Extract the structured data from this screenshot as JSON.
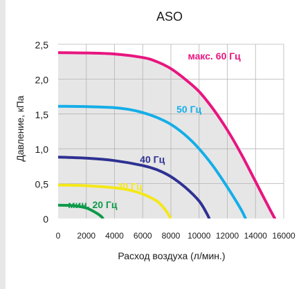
{
  "chart_data": {
    "type": "line",
    "title": "ASO",
    "xlabel": "Расход воздуха (л/мин.)",
    "ylabel": "Давление, кПа",
    "xlim": [
      0,
      16000
    ],
    "ylim": [
      0,
      2.5
    ],
    "x_ticks": [
      0,
      2000,
      4000,
      6000,
      8000,
      10000,
      12000,
      14000,
      16000
    ],
    "y_ticks": [
      0,
      0.5,
      1.0,
      1.5,
      2.0,
      2.5
    ],
    "y_tick_labels": [
      "0",
      "0,5",
      "1,0",
      "1,5",
      "2,0",
      "2,5"
    ],
    "grid": true,
    "series": [
      {
        "name": "макс. 60 Гц",
        "color": "#e8157f",
        "points": [
          [
            0,
            2.38
          ],
          [
            2000,
            2.375
          ],
          [
            4000,
            2.36
          ],
          [
            6000,
            2.31
          ],
          [
            7000,
            2.25
          ],
          [
            8000,
            2.15
          ],
          [
            9000,
            2.0
          ],
          [
            10000,
            1.82
          ],
          [
            11000,
            1.57
          ],
          [
            12000,
            1.27
          ],
          [
            13000,
            0.92
          ],
          [
            14000,
            0.53
          ],
          [
            15000,
            0.14
          ],
          [
            15500,
            -0.05
          ]
        ]
      },
      {
        "name": "50 Гц",
        "color": "#14aee8",
        "points": [
          [
            0,
            1.61
          ],
          [
            2000,
            1.605
          ],
          [
            4000,
            1.59
          ],
          [
            5000,
            1.565
          ],
          [
            6000,
            1.52
          ],
          [
            7000,
            1.45
          ],
          [
            8000,
            1.35
          ],
          [
            9000,
            1.2
          ],
          [
            10000,
            1.0
          ],
          [
            11000,
            0.75
          ],
          [
            12000,
            0.45
          ],
          [
            13000,
            0.12
          ],
          [
            13400,
            -0.05
          ]
        ]
      },
      {
        "name": "40 Гц",
        "color": "#2e3192",
        "points": [
          [
            0,
            0.88
          ],
          [
            2000,
            0.865
          ],
          [
            4000,
            0.83
          ],
          [
            6000,
            0.76
          ],
          [
            7000,
            0.7
          ],
          [
            8000,
            0.6
          ],
          [
            9000,
            0.45
          ],
          [
            10000,
            0.25
          ],
          [
            10600,
            0.05
          ],
          [
            10800,
            -0.05
          ]
        ]
      },
      {
        "name": "30 Гц",
        "color": "#f4e81a",
        "points": [
          [
            0,
            0.48
          ],
          [
            2000,
            0.47
          ],
          [
            4000,
            0.44
          ],
          [
            5000,
            0.41
          ],
          [
            6000,
            0.35
          ],
          [
            7000,
            0.25
          ],
          [
            7500,
            0.15
          ],
          [
            7900,
            0.03
          ],
          [
            8000,
            -0.05
          ]
        ]
      },
      {
        "name": "мин. 20 Гц",
        "color": "#0d9a4a",
        "points": [
          [
            0,
            0.19
          ],
          [
            1000,
            0.185
          ],
          [
            2000,
            0.15
          ],
          [
            2700,
            0.08
          ],
          [
            3100,
            0.02
          ],
          [
            3300,
            -0.05
          ]
        ]
      }
    ],
    "fill_color": "#e6e6e6",
    "grid_color": "#b4b4b4"
  }
}
